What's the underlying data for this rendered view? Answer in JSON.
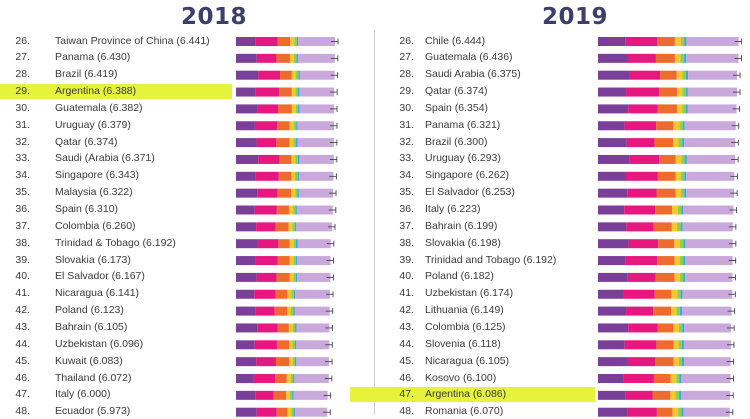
{
  "chart_data": [
    {
      "type": "bar",
      "title": "2018",
      "orientation": "horizontal-stacked",
      "highlighted": "Argentina",
      "segment_colors": [
        "#7a3f98",
        "#e6177e",
        "#ee6b2e",
        "#f7c72e",
        "#8fcf4e",
        "#3ba8e0",
        "#c9a9dc"
      ],
      "rows": [
        {
          "rank": "26.",
          "label": "Taiwan Province of China (6.441)",
          "score": 6.441
        },
        {
          "rank": "27.",
          "label": "Panama (6.430)",
          "score": 6.43
        },
        {
          "rank": "28.",
          "label": "Brazil (6.419)",
          "score": 6.419
        },
        {
          "rank": "29.",
          "label": "Argentina (6.388)",
          "score": 6.388
        },
        {
          "rank": "30.",
          "label": "Guatemala (6.382)",
          "score": 6.382
        },
        {
          "rank": "31.",
          "label": "Uruguay (6.379)",
          "score": 6.379
        },
        {
          "rank": "32.",
          "label": "Qatar (6.374)",
          "score": 6.374
        },
        {
          "rank": "33.",
          "label": "Saudi (Arabia (6.371)",
          "score": 6.371
        },
        {
          "rank": "34.",
          "label": "Singapore (6.343)",
          "score": 6.343
        },
        {
          "rank": "35.",
          "label": "Malaysia (6.322)",
          "score": 6.322
        },
        {
          "rank": "36.",
          "label": "Spain (6.310)",
          "score": 6.31
        },
        {
          "rank": "37.",
          "label": "Colombia (6.260)",
          "score": 6.26
        },
        {
          "rank": "38.",
          "label": "Trinidad & Tobago (6.192)",
          "score": 6.192
        },
        {
          "rank": "39.",
          "label": "Slovakia (6.173)",
          "score": 6.173
        },
        {
          "rank": "40.",
          "label": "El Salvador (6.167)",
          "score": 6.167
        },
        {
          "rank": "41.",
          "label": "Nicaragua (6.141)",
          "score": 6.141
        },
        {
          "rank": "42.",
          "label": "Poland (6.123)",
          "score": 6.123
        },
        {
          "rank": "43.",
          "label": "Bahrain (6.105)",
          "score": 6.105
        },
        {
          "rank": "44.",
          "label": "Uzbekistan (6.096)",
          "score": 6.096
        },
        {
          "rank": "45.",
          "label": "Kuwait (6.083)",
          "score": 6.083
        },
        {
          "rank": "46.",
          "label": "Thailand (6.072)",
          "score": 6.072
        },
        {
          "rank": "47.",
          "label": "Italy (6.000)",
          "score": 6.0
        },
        {
          "rank": "48.",
          "label": "Ecuador (5.973)",
          "score": 5.973
        }
      ]
    },
    {
      "type": "bar",
      "title": "2019",
      "orientation": "horizontal-stacked",
      "highlighted": "Argentina",
      "segment_colors": [
        "#7a3f98",
        "#e6177e",
        "#ee6b2e",
        "#f7c72e",
        "#8fcf4e",
        "#3ba8e0",
        "#c9a9dc"
      ],
      "rows": [
        {
          "rank": "26.",
          "label": "Chile (6.444)",
          "score": 6.444
        },
        {
          "rank": "27.",
          "label": "Guatemala (6.436)",
          "score": 6.436
        },
        {
          "rank": "28.",
          "label": "Saudi Arabia (6.375)",
          "score": 6.375
        },
        {
          "rank": "29.",
          "label": "Qatar (6.374)",
          "score": 6.374
        },
        {
          "rank": "30.",
          "label": "Spain (6.354)",
          "score": 6.354
        },
        {
          "rank": "31.",
          "label": "Panama (6.321)",
          "score": 6.321
        },
        {
          "rank": "32.",
          "label": "Brazil (6.300)",
          "score": 6.3
        },
        {
          "rank": "33.",
          "label": "Uruguay (6.293)",
          "score": 6.293
        },
        {
          "rank": "34.",
          "label": "Singapore (6.262)",
          "score": 6.262
        },
        {
          "rank": "35.",
          "label": "El Salvador (6.253)",
          "score": 6.253
        },
        {
          "rank": "36.",
          "label": "Italy (6.223)",
          "score": 6.223
        },
        {
          "rank": "37.",
          "label": "Bahrain (6.199)",
          "score": 6.199
        },
        {
          "rank": "38.",
          "label": "Slovakia (6.198)",
          "score": 6.198
        },
        {
          "rank": "39.",
          "label": "Trinidad and Tobago (6.192)",
          "score": 6.192
        },
        {
          "rank": "40.",
          "label": "Poland (6.182)",
          "score": 6.182
        },
        {
          "rank": "41.",
          "label": "Uzbekistan (6.174)",
          "score": 6.174
        },
        {
          "rank": "42.",
          "label": "Lithuania (6.149)",
          "score": 6.149
        },
        {
          "rank": "43.",
          "label": "Colombia (6.125)",
          "score": 6.125
        },
        {
          "rank": "44.",
          "label": "Slovenia (6.118)",
          "score": 6.118
        },
        {
          "rank": "45.",
          "label": "Nicaragua (6.105)",
          "score": 6.105
        },
        {
          "rank": "46.",
          "label": "Kosovo (6.100)",
          "score": 6.1
        },
        {
          "rank": "47.",
          "label": "Argentina (6.086)",
          "score": 6.086
        },
        {
          "rank": "48.",
          "label": "Romania (6.070)",
          "score": 6.07
        }
      ]
    }
  ]
}
